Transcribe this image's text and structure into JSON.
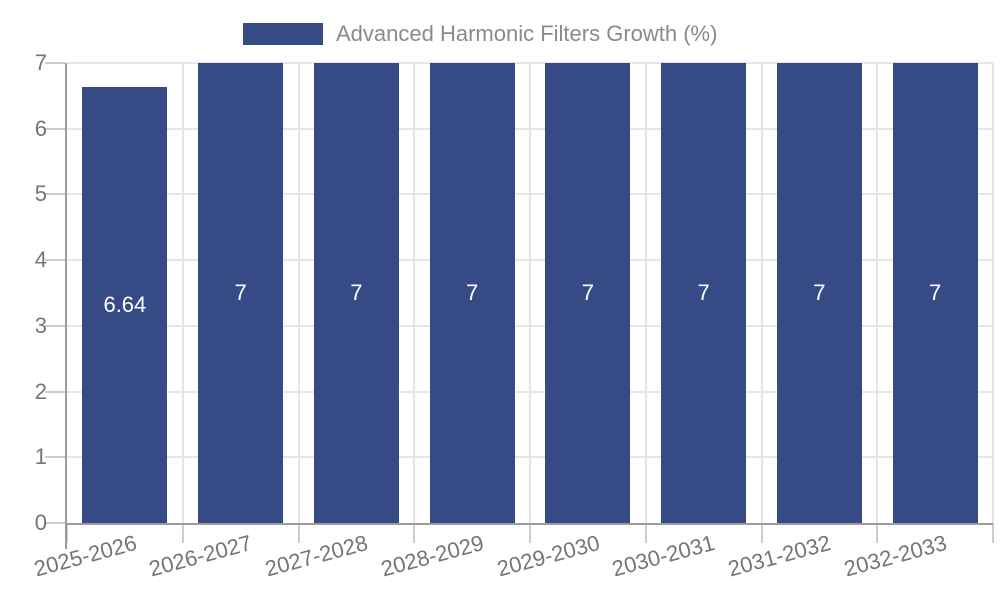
{
  "chart_data": {
    "type": "bar",
    "title": "",
    "categories": [
      "2025-2026",
      "2026-2027",
      "2027-2028",
      "2028-2029",
      "2029-2030",
      "2030-2031",
      "2031-2032",
      "2032-2033"
    ],
    "series": [
      {
        "name": "Advanced Harmonic Filters Growth (%)",
        "values": [
          6.64,
          7,
          7,
          7,
          7,
          7,
          7,
          7
        ],
        "value_labels": [
          "6.64",
          "7",
          "7",
          "7",
          "7",
          "7",
          "7",
          "7"
        ],
        "color": "#364a86"
      }
    ],
    "xlabel": "",
    "ylabel": "",
    "ylim": [
      0,
      7
    ],
    "yticks": [
      0,
      1,
      2,
      3,
      4,
      5,
      6,
      7
    ],
    "grid": true,
    "legend_position": "top-center",
    "value_label_position": "inside-center",
    "x_tick_rotation_deg": -15
  },
  "colors": {
    "bar": "#364a86",
    "bar_value_label": "#ffffff",
    "legend_text": "#8a8a8a",
    "axis_tick_text": "#757575",
    "grid_line": "#e6e6e6",
    "axis_line": "#9c9c9c",
    "tick_mark": "#cccccc",
    "background": "#ffffff"
  }
}
